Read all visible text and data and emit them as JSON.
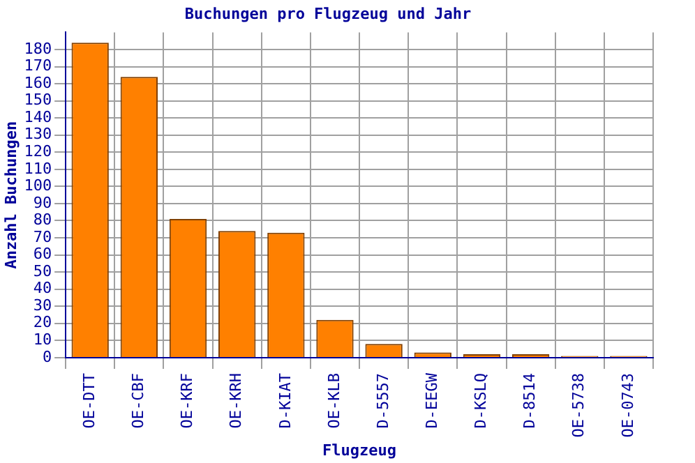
{
  "chart_data": {
    "type": "bar",
    "title": "Buchungen pro Flugzeug und Jahr",
    "xlabel": "Flugzeug",
    "ylabel": "Anzahl Buchungen",
    "categories": [
      "OE-DTT",
      "OE-CBF",
      "OE-KRF",
      "OE-KRH",
      "D-KIAT",
      "OE-KLB",
      "D-5557",
      "D-EEGW",
      "D-KSLQ",
      "D-8514",
      "OE-5738",
      "OE-0743"
    ],
    "values": [
      184,
      164,
      81,
      74,
      73,
      22,
      8,
      3,
      2,
      2,
      1,
      1
    ],
    "color": "#ff8000",
    "ylim": [
      0,
      190
    ],
    "yticks": [
      0,
      10,
      20,
      30,
      40,
      50,
      60,
      70,
      80,
      90,
      100,
      110,
      120,
      130,
      140,
      150,
      160,
      170,
      180
    ],
    "grid": true
  }
}
